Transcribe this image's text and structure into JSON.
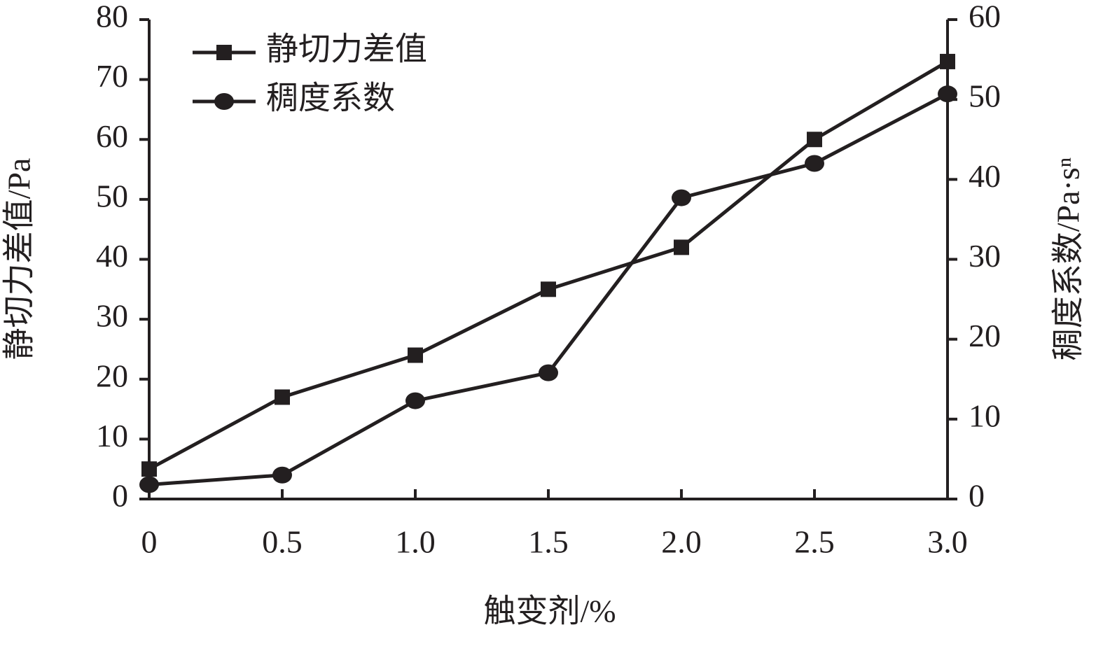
{
  "chart_data": {
    "type": "line",
    "x_label": "触变剂/%",
    "y_label": "静切力差值/Pa",
    "y2_label": "稠度系数/Pa·sⁿ",
    "x": [
      0,
      0.5,
      1,
      1.5,
      2,
      2.5,
      3
    ],
    "xlim": [
      0,
      3
    ],
    "xticks": [
      0,
      0.5,
      {
        "value": 1,
        "label": "1.0"
      },
      1.5,
      {
        "value": 2,
        "label": "2.0"
      },
      2.5,
      {
        "value": 3,
        "label": "3.0"
      }
    ],
    "ylim": [
      0,
      80
    ],
    "yticks": [
      0,
      10,
      20,
      30,
      40,
      50,
      60,
      70,
      80
    ],
    "y2lim": [
      0,
      60
    ],
    "y2ticks": [
      0,
      10,
      20,
      30,
      40,
      50,
      60
    ],
    "legend": "upper left",
    "series": [
      {
        "name": "静切力差值",
        "color": "#231f20",
        "marker": "square",
        "axis": "y",
        "values": [
          5,
          17,
          24,
          35,
          42,
          60,
          73
        ]
      },
      {
        "name": "稠度系数",
        "color": "#231f20",
        "marker": "circle",
        "axis": "y2",
        "values": [
          1.8,
          3.0,
          12.3,
          15.8,
          37.7,
          42.0,
          50.7
        ]
      }
    ]
  }
}
